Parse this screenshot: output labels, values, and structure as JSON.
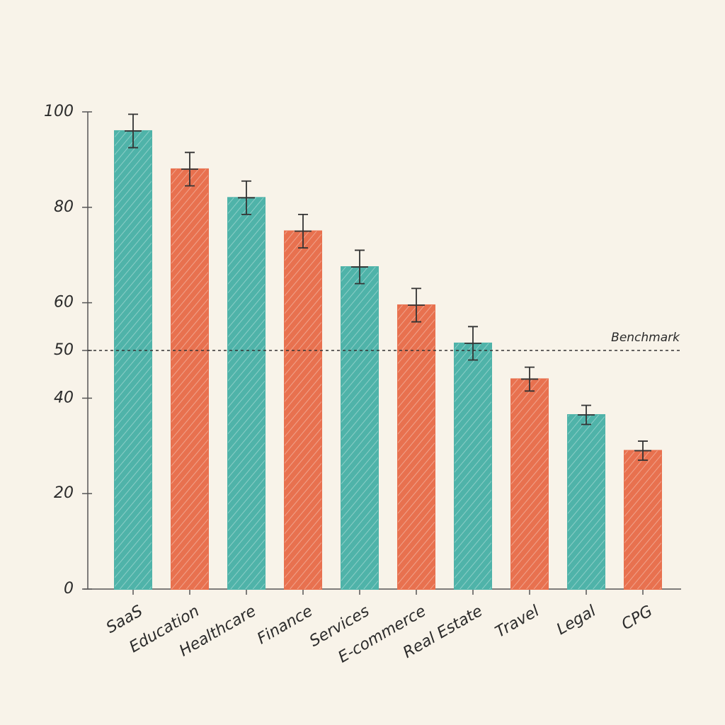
{
  "chart_data": {
    "type": "bar",
    "categories": [
      "SaaS",
      "Education",
      "Healthcare",
      "Finance",
      "Services",
      "E-commerce",
      "Real Estate",
      "Travel",
      "Legal",
      "CPG"
    ],
    "values": [
      96,
      88,
      82,
      75,
      67.5,
      59.5,
      51.5,
      44,
      36.5,
      29
    ],
    "errors": [
      3.5,
      3.5,
      3.5,
      3.5,
      3.5,
      3.5,
      3.5,
      2.5,
      2,
      2
    ],
    "colors": [
      "#4fb3a9",
      "#e8714f",
      "#4fb3a9",
      "#e8714f",
      "#4fb3a9",
      "#e8714f",
      "#4fb3a9",
      "#e8714f",
      "#4fb3a9",
      "#e8714f"
    ],
    "ylim": [
      0,
      100
    ],
    "yticks": [
      0,
      20,
      40,
      50,
      60,
      80,
      100
    ],
    "reference_line": {
      "value": 50,
      "label": "Benchmark"
    }
  }
}
